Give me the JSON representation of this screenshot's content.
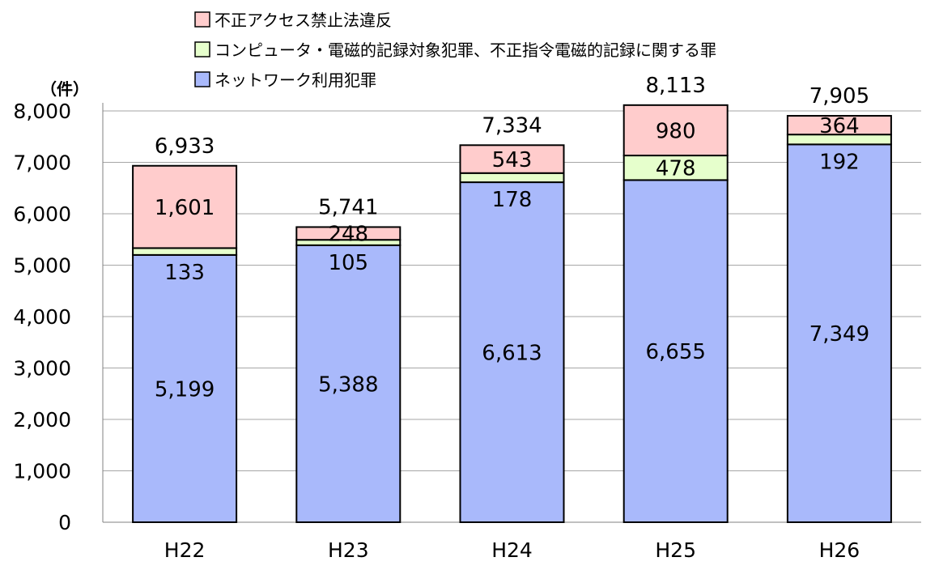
{
  "chart_data": {
    "type": "bar",
    "stacked": true,
    "unit_label": "（件）",
    "categories": [
      "H22",
      "H23",
      "H24",
      "H25",
      "H26"
    ],
    "series": [
      {
        "name": "ネットワーク利用犯罪",
        "color": "#a9b9fb",
        "values": [
          5199,
          5388,
          6613,
          6655,
          7349
        ],
        "labels": [
          "5,199",
          "5,388",
          "6,613",
          "6,655",
          "7,349"
        ]
      },
      {
        "name": "コンピュータ・電磁的記録対象犯罪、不正指令電磁的記録に関する罪",
        "color": "#e6ffcc",
        "values": [
          133,
          105,
          178,
          478,
          192
        ],
        "labels": [
          "133",
          "105",
          "178",
          "478",
          "192"
        ]
      },
      {
        "name": "不正アクセス禁止法違反",
        "color": "#ffcccc",
        "values": [
          1601,
          248,
          543,
          980,
          364
        ],
        "labels": [
          "1,601",
          "248",
          "543",
          "980",
          "364"
        ]
      }
    ],
    "totals": [
      6933,
      5741,
      7334,
      8113,
      7905
    ],
    "total_labels": [
      "6,933",
      "5,741",
      "7,334",
      "8,113",
      "7,905"
    ],
    "legend_order": [
      "不正アクセス禁止法違反",
      "コンピュータ・電磁的記録対象犯罪、不正指令電磁的記録に関する罪",
      "ネットワーク利用犯罪"
    ],
    "legend_placement": "top",
    "ylim": [
      0,
      8000
    ],
    "yticks": [
      0,
      1000,
      2000,
      3000,
      4000,
      5000,
      6000,
      7000,
      8000
    ],
    "ytick_labels": [
      "0",
      "1,000",
      "2,000",
      "3,000",
      "4,000",
      "5,000",
      "6,000",
      "7,000",
      "8,000"
    ],
    "grid": true
  }
}
